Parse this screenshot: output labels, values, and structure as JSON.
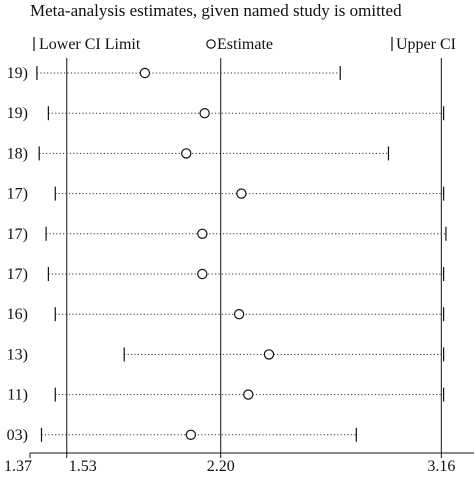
{
  "chart_data": {
    "type": "scatter",
    "title": "Meta-analysis estimates, given named study is omitted",
    "legend": {
      "lower": "Lower CI Limit",
      "estimate": "Estimate",
      "upper": "Upper CI"
    },
    "xlim": [
      1.37,
      3.25
    ],
    "x_ticks": [
      {
        "value": 1.37,
        "label": "1.37"
      },
      {
        "value": 1.53,
        "label": "1.53"
      },
      {
        "value": 2.2,
        "label": "2.20"
      },
      {
        "value": 3.16,
        "label": "3.16"
      }
    ],
    "reference_lines": [
      1.53,
      2.2,
      3.16
    ],
    "rows": [
      {
        "label": "19)",
        "lower": 1.4,
        "estimate": 1.87,
        "upper": 2.72
      },
      {
        "label": "19)",
        "lower": 1.45,
        "estimate": 2.13,
        "upper": 3.17
      },
      {
        "label": "18)",
        "lower": 1.41,
        "estimate": 2.05,
        "upper": 2.93
      },
      {
        "label": "17)",
        "lower": 1.48,
        "estimate": 2.29,
        "upper": 3.17
      },
      {
        "label": "17)",
        "lower": 1.44,
        "estimate": 2.12,
        "upper": 3.18
      },
      {
        "label": "17)",
        "lower": 1.45,
        "estimate": 2.12,
        "upper": 3.17
      },
      {
        "label": "16)",
        "lower": 1.48,
        "estimate": 2.28,
        "upper": 3.17
      },
      {
        "label": "13)",
        "lower": 1.78,
        "estimate": 2.41,
        "upper": 3.17
      },
      {
        "label": "11)",
        "lower": 1.48,
        "estimate": 2.32,
        "upper": 3.17
      },
      {
        "label": "03)",
        "lower": 1.42,
        "estimate": 2.07,
        "upper": 2.79
      }
    ]
  }
}
